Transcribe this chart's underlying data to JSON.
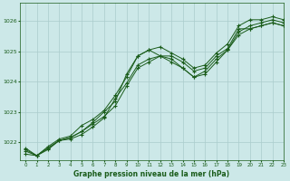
{
  "xlabel": "Graphe pression niveau de la mer (hPa)",
  "bg_color": "#cce8e8",
  "grid_color": "#aacccc",
  "line_color": "#1a5c1a",
  "xlim": [
    -0.5,
    23
  ],
  "ylim": [
    1021.4,
    1026.6
  ],
  "yticks": [
    1022,
    1023,
    1024,
    1025,
    1026
  ],
  "xticks": [
    0,
    1,
    2,
    3,
    4,
    5,
    6,
    7,
    8,
    9,
    10,
    11,
    12,
    13,
    14,
    15,
    16,
    17,
    18,
    19,
    20,
    21,
    22,
    23
  ],
  "series": [
    [
      1021.7,
      1021.55,
      1021.8,
      1022.05,
      1022.15,
      1022.35,
      1022.65,
      1023.0,
      1023.35,
      1024.25,
      1024.85,
      1025.05,
      1024.85,
      1024.85,
      1024.65,
      1024.35,
      1024.45,
      1024.85,
      1025.1,
      1025.75,
      1025.75,
      1025.85,
      1025.95,
      1025.85
    ],
    [
      1021.6,
      1021.55,
      1021.75,
      1022.05,
      1022.1,
      1022.25,
      1022.5,
      1022.8,
      1023.45,
      1023.95,
      1024.55,
      1024.75,
      1024.85,
      1024.75,
      1024.45,
      1024.15,
      1024.25,
      1024.65,
      1025.05,
      1025.55,
      1025.75,
      1025.85,
      1025.95,
      1025.85
    ],
    [
      1021.75,
      1021.55,
      1021.85,
      1022.1,
      1022.2,
      1022.55,
      1022.75,
      1023.05,
      1023.55,
      1024.15,
      1024.85,
      1025.05,
      1025.15,
      1024.95,
      1024.75,
      1024.45,
      1024.55,
      1024.95,
      1025.25,
      1025.85,
      1026.05,
      1026.05,
      1026.15,
      1026.05
    ],
    [
      1021.8,
      1021.55,
      1021.8,
      1022.05,
      1022.15,
      1022.35,
      1022.6,
      1022.85,
      1023.2,
      1023.85,
      1024.45,
      1024.65,
      1024.85,
      1024.65,
      1024.45,
      1024.15,
      1024.35,
      1024.75,
      1025.05,
      1025.65,
      1025.85,
      1025.95,
      1026.05,
      1025.95
    ]
  ]
}
